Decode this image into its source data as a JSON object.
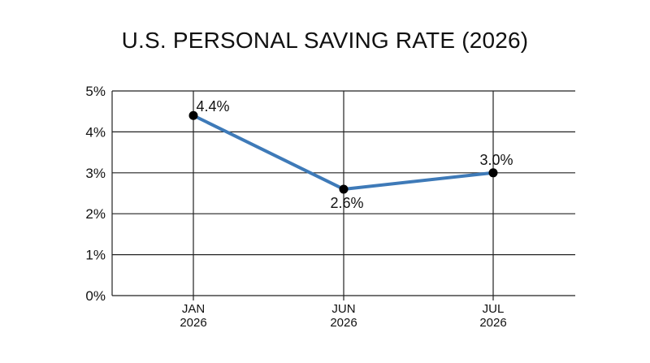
{
  "chart_data": {
    "type": "line",
    "title": "U.S. PERSONAL SAVING RATE (2026)",
    "categories": [
      [
        "JAN",
        "2026"
      ],
      [
        "JUN",
        "2026"
      ],
      [
        "JUL",
        "2026"
      ]
    ],
    "series": [
      {
        "values": [
          4.4,
          2.6,
          3.0
        ]
      }
    ],
    "data_labels": [
      "4.4%",
      "2.6%",
      "3.0%"
    ],
    "y_ticks": [
      {
        "value": 0,
        "label": "0%"
      },
      {
        "value": 1,
        "label": "1%"
      },
      {
        "value": 2,
        "label": "2%"
      },
      {
        "value": 3,
        "label": "3%"
      },
      {
        "value": 4,
        "label": "4%"
      },
      {
        "value": 5,
        "label": "5%"
      }
    ],
    "ylim": [
      0,
      5
    ],
    "grid": true,
    "line_color": "#3e7ab8",
    "marker_color": "#000000"
  }
}
